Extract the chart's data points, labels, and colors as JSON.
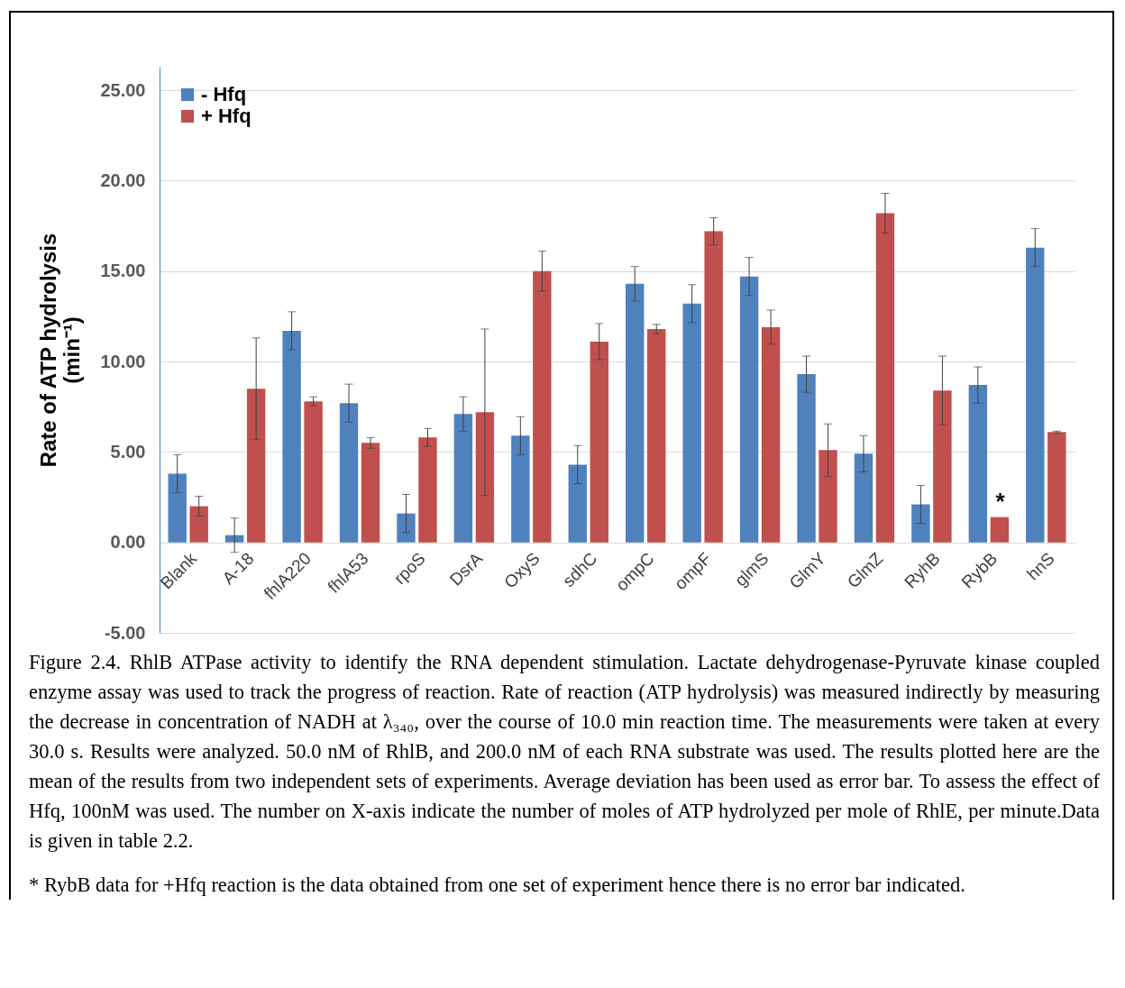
{
  "chart_data": {
    "type": "bar",
    "ylabel": "Rate of ATP hydrolysis\n(min⁻¹)",
    "categories": [
      "Blank",
      "A-18",
      "fhlA220",
      "fhlA53",
      "rpoS",
      "DsrA",
      "OxyS",
      "sdhC",
      "ompC",
      "ompF",
      "glmS",
      "GlmY",
      "GlmZ",
      "RyhB",
      "RybB",
      "hnS"
    ],
    "series": [
      {
        "name": "- Hfq",
        "color": "#4f81bd",
        "values": [
          3.8,
          0.4,
          11.7,
          7.7,
          1.6,
          7.1,
          5.9,
          4.3,
          14.3,
          13.2,
          14.7,
          9.3,
          4.9,
          2.1,
          8.7,
          16.3
        ],
        "errors": [
          1.05,
          0.95,
          1.05,
          1.05,
          1.05,
          0.95,
          1.05,
          1.05,
          0.95,
          1.05,
          1.05,
          1.0,
          1.0,
          1.05,
          1.0,
          1.05
        ]
      },
      {
        "name": "+ Hfq",
        "color": "#c0504d",
        "values": [
          2.0,
          8.5,
          7.8,
          5.5,
          5.8,
          7.2,
          15.0,
          11.1,
          11.8,
          17.2,
          11.9,
          5.1,
          18.2,
          8.4,
          1.4,
          6.1
        ],
        "errors": [
          0.55,
          2.8,
          0.25,
          0.3,
          0.5,
          4.6,
          1.1,
          1.0,
          0.25,
          0.75,
          0.95,
          1.45,
          1.1,
          1.9,
          null,
          0.05
        ]
      }
    ],
    "ylim": [
      -5,
      26.3
    ],
    "yticks": [
      {
        "value": -5,
        "label": "-5.00"
      },
      {
        "value": 0,
        "label": "0.00"
      },
      {
        "value": 5,
        "label": "5.00"
      },
      {
        "value": 10,
        "label": "10.00"
      },
      {
        "value": 15,
        "label": "15.00"
      },
      {
        "value": 20,
        "label": "20.00"
      },
      {
        "value": 25,
        "label": "25.00"
      }
    ],
    "grid": "y",
    "legend": "top left",
    "annotations": [
      {
        "text": "*",
        "x": "RybB",
        "y": 1.4
      },
      "Figure 2.4. RhlB ATPase activity to identify the RNA dependent stimulation. Lactate dehydrogenase-Pyruvate kinase coupled enzyme assay was used to track the progress of reaction. Rate of reaction (ATP hydrolysis) was measured indirectly by measuring the decrease in concentration of NADH at λ₃₄₀, over the course of 10.0 min reaction time. The measurements were taken at every 30.0 s. Results were analyzed. 50.0 nM of RhlB, and 200.0 nM of each RNA substrate was used. The results plotted here are the mean of the results from two independent sets of experiments. Average deviation has been used as error bar. To assess the effect of Hfq, 100nM was used. The number on X-axis indicate the number of moles of ATP hydrolyzed per mole of RhlE, per minute.Data is given in table 2.2.",
      "* RybB data for +Hfq reaction is the data obtained from one set of experiment hence there is no error bar indicated."
    ]
  }
}
